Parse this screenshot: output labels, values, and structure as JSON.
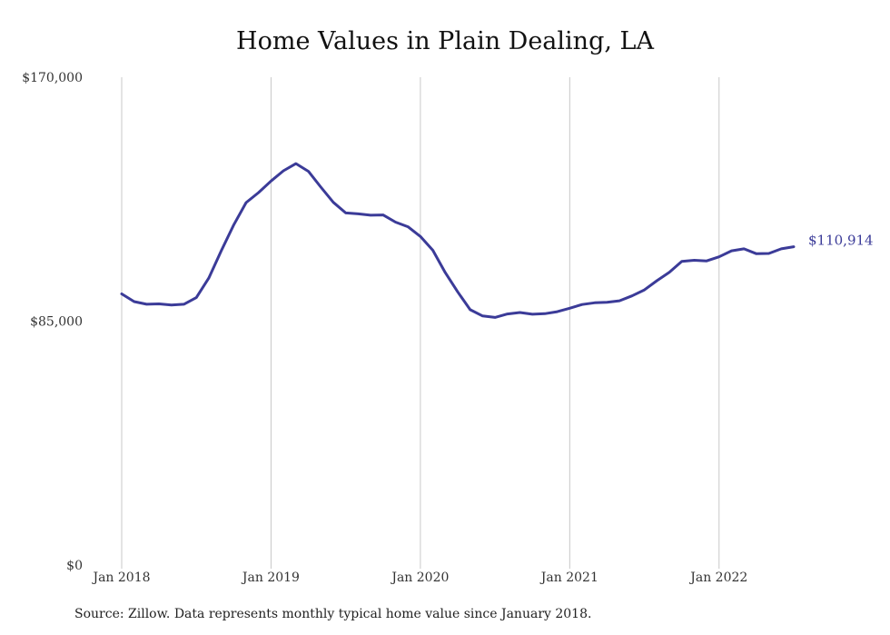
{
  "title": "Home Values in Plain Dealing, LA",
  "source": "Source: Zillow. Data represents monthly typical home value since January 2018.",
  "chart_data": {
    "type": "line",
    "title": "Home Values in Plain Dealing, LA",
    "xlabel": "",
    "ylabel": "",
    "ylim": [
      0,
      170000
    ],
    "y_ticks": [
      {
        "value": 0,
        "label": "$0"
      },
      {
        "value": 85000,
        "label": "$85,000"
      },
      {
        "value": 170000,
        "label": "$170,000"
      }
    ],
    "x_ticks": [
      "Jan 2018",
      "Jan 2019",
      "Jan 2020",
      "Jan 2021",
      "Jan 2022"
    ],
    "grid": "vertical lines at January of each year",
    "line_color": "#3b3b98",
    "end_label": "$110,914",
    "x": [
      "2018-01",
      "2018-02",
      "2018-03",
      "2018-04",
      "2018-05",
      "2018-06",
      "2018-07",
      "2018-08",
      "2018-09",
      "2018-10",
      "2018-11",
      "2018-12",
      "2019-01",
      "2019-02",
      "2019-03",
      "2019-04",
      "2019-05",
      "2019-06",
      "2019-07",
      "2019-08",
      "2019-09",
      "2019-10",
      "2019-11",
      "2019-12",
      "2020-01",
      "2020-02",
      "2020-03",
      "2020-04",
      "2020-05",
      "2020-06",
      "2020-07",
      "2020-08",
      "2020-09",
      "2020-10",
      "2020-11",
      "2020-12",
      "2021-01",
      "2021-02",
      "2021-03",
      "2021-04",
      "2021-05",
      "2021-06",
      "2021-07",
      "2021-08",
      "2021-09",
      "2021-10",
      "2021-11",
      "2021-12",
      "2022-01",
      "2022-02",
      "2022-03",
      "2022-04",
      "2022-05",
      "2022-06",
      "2022-07"
    ],
    "values": [
      94500,
      91800,
      90900,
      91000,
      90600,
      90900,
      93200,
      100000,
      109500,
      118500,
      126300,
      129800,
      133800,
      137400,
      139900,
      137200,
      131700,
      126400,
      122700,
      122400,
      121900,
      122000,
      119500,
      117900,
      114500,
      109700,
      101900,
      95200,
      89000,
      86800,
      86300,
      87500,
      88000,
      87400,
      87600,
      88300,
      89500,
      90800,
      91400,
      91600,
      92100,
      93800,
      95900,
      99100,
      102000,
      105800,
      106200,
      106000,
      107400,
      109500,
      110200,
      108500,
      108600,
      110200,
      110914
    ]
  }
}
